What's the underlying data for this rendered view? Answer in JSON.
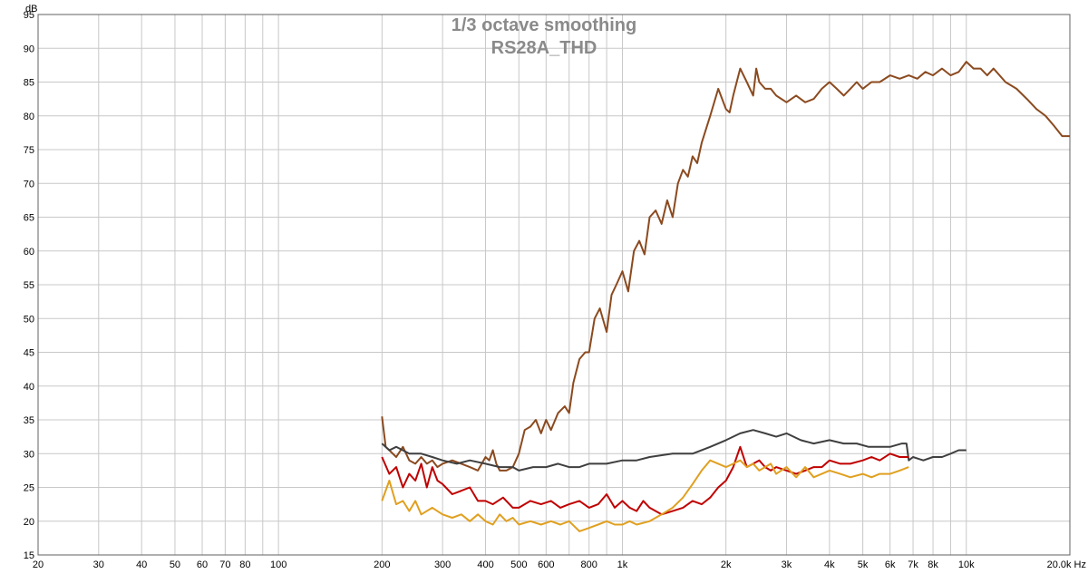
{
  "chart_data": {
    "type": "line",
    "title": "1/3 octave smoothing",
    "subtitle": "RS28A_THD",
    "ylabel": "dB",
    "xunit": "Hz",
    "xscale": "log",
    "xlim": [
      20,
      20000
    ],
    "ylim": [
      15,
      95
    ],
    "grid": true,
    "ytick_labels": [
      "15",
      "20",
      "25",
      "30",
      "35",
      "40",
      "45",
      "50",
      "55",
      "60",
      "65",
      "70",
      "75",
      "80",
      "85",
      "90",
      "95"
    ],
    "yticks": [
      15,
      20,
      25,
      30,
      35,
      40,
      45,
      50,
      55,
      60,
      65,
      70,
      75,
      80,
      85,
      90,
      95
    ],
    "xticks": [
      {
        "v": 20,
        "label": "20"
      },
      {
        "v": 30,
        "label": "30"
      },
      {
        "v": 40,
        "label": "40"
      },
      {
        "v": 50,
        "label": "50"
      },
      {
        "v": 60,
        "label": "60"
      },
      {
        "v": 70,
        "label": "70"
      },
      {
        "v": 80,
        "label": "80"
      },
      {
        "v": 100,
        "label": "100"
      },
      {
        "v": 200,
        "label": "200"
      },
      {
        "v": 300,
        "label": "300"
      },
      {
        "v": 400,
        "label": "400"
      },
      {
        "v": 500,
        "label": "500"
      },
      {
        "v": 600,
        "label": "600"
      },
      {
        "v": 800,
        "label": "800"
      },
      {
        "v": 1000,
        "label": "1k"
      },
      {
        "v": 2000,
        "label": "2k"
      },
      {
        "v": 3000,
        "label": "3k"
      },
      {
        "v": 4000,
        "label": "4k"
      },
      {
        "v": 5000,
        "label": "5k"
      },
      {
        "v": 6000,
        "label": "6k"
      },
      {
        "v": 7000,
        "label": "7k"
      },
      {
        "v": 8000,
        "label": "8k"
      },
      {
        "v": 10000,
        "label": "10k"
      },
      {
        "v": 20000,
        "label": "20.0k Hz"
      }
    ],
    "series": [
      {
        "color": "#8b4a1f",
        "x": [
          200,
          205,
          210,
          220,
          230,
          240,
          250,
          260,
          270,
          280,
          290,
          300,
          320,
          340,
          360,
          380,
          400,
          410,
          420,
          430,
          440,
          460,
          480,
          500,
          520,
          540,
          560,
          580,
          600,
          620,
          650,
          680,
          700,
          720,
          750,
          780,
          800,
          830,
          860,
          900,
          930,
          960,
          1000,
          1040,
          1080,
          1120,
          1160,
          1200,
          1250,
          1300,
          1350,
          1400,
          1450,
          1500,
          1550,
          1600,
          1650,
          1700,
          1800,
          1900,
          2000,
          2050,
          2100,
          2200,
          2300,
          2400,
          2450,
          2500,
          2600,
          2700,
          2800,
          3000,
          3200,
          3400,
          3600,
          3800,
          4000,
          4200,
          4400,
          4600,
          4800,
          5000,
          5300,
          5600,
          6000,
          6400,
          6800,
          7200,
          7600,
          8000,
          8500,
          9000,
          9500,
          10000,
          10500,
          11000,
          11500,
          12000,
          13000,
          14000,
          15000,
          16000,
          17000,
          18000,
          19000,
          20000
        ],
        "y": [
          35.5,
          31,
          30.5,
          29.5,
          31,
          29,
          28.5,
          29.5,
          28.5,
          29,
          28,
          28.5,
          29,
          28.5,
          28,
          27.5,
          29.5,
          29,
          30.5,
          28.5,
          27.5,
          27.5,
          28,
          30,
          33.5,
          34,
          35,
          33,
          35,
          33.5,
          36,
          37,
          36,
          40.5,
          44,
          45,
          45,
          50,
          51.5,
          48,
          53.5,
          55,
          57,
          54,
          60,
          61.5,
          59.5,
          65,
          66,
          64,
          67.5,
          65,
          70,
          72,
          71,
          74,
          73,
          76,
          80,
          84,
          81,
          80.5,
          83,
          87,
          85,
          83,
          87,
          85,
          84,
          84,
          83,
          82,
          83,
          82,
          82.5,
          84,
          85,
          84,
          83,
          84,
          85,
          84,
          85,
          85,
          86,
          85.5,
          86,
          85.5,
          86.5,
          86,
          87,
          86,
          86.5,
          88,
          87,
          87,
          86,
          87,
          85,
          84,
          82.5,
          81,
          80,
          78.5,
          77,
          77
        ]
      },
      {
        "color": "#3f3f3f",
        "x": [
          200,
          210,
          220,
          240,
          260,
          280,
          300,
          330,
          360,
          400,
          440,
          480,
          500,
          550,
          600,
          650,
          700,
          750,
          800,
          900,
          1000,
          1100,
          1200,
          1400,
          1600,
          1800,
          2000,
          2200,
          2400,
          2600,
          2800,
          3000,
          3300,
          3600,
          4000,
          4400,
          4800,
          5200,
          5600,
          6000,
          6500,
          6700,
          6800,
          7000,
          7500,
          8000,
          8500,
          9000,
          9500,
          10000
        ],
        "y": [
          31.5,
          30.5,
          31,
          30,
          30,
          29.5,
          29,
          28.5,
          29,
          28.5,
          28,
          28,
          27.5,
          28,
          28,
          28.5,
          28,
          28,
          28.5,
          28.5,
          29,
          29,
          29.5,
          30,
          30,
          31,
          32,
          33,
          33.5,
          33,
          32.5,
          33,
          32,
          31.5,
          32,
          31.5,
          31.5,
          31,
          31,
          31,
          31.5,
          31.5,
          29,
          29.5,
          29,
          29.5,
          29.5,
          30,
          30.5,
          30.5
        ]
      },
      {
        "color": "#c00000",
        "x": [
          200,
          210,
          220,
          230,
          240,
          250,
          260,
          270,
          280,
          290,
          300,
          320,
          340,
          360,
          380,
          400,
          420,
          450,
          480,
          500,
          540,
          580,
          620,
          660,
          700,
          750,
          800,
          850,
          900,
          950,
          1000,
          1050,
          1100,
          1150,
          1200,
          1300,
          1400,
          1500,
          1600,
          1700,
          1800,
          1900,
          2000,
          2100,
          2200,
          2300,
          2400,
          2500,
          2600,
          2700,
          2800,
          3000,
          3200,
          3400,
          3600,
          3800,
          4000,
          4300,
          4600,
          5000,
          5300,
          5600,
          6000,
          6400,
          6800
        ],
        "y": [
          29.5,
          27,
          28,
          25,
          27,
          26,
          28.5,
          25,
          28,
          26,
          25.5,
          24,
          24.5,
          25,
          23,
          23,
          22.5,
          23.5,
          22,
          22,
          23,
          22.5,
          23,
          22,
          22.5,
          23,
          22,
          22.5,
          24,
          22,
          23,
          22,
          21.5,
          23,
          22,
          21,
          21.5,
          22,
          23,
          22.5,
          23.5,
          25,
          26,
          28,
          31,
          28,
          28.5,
          29,
          28,
          27.5,
          28,
          27.5,
          27,
          27.5,
          28,
          28,
          29,
          28.5,
          28.5,
          29,
          29.5,
          29,
          30,
          29.5,
          29.5
        ]
      },
      {
        "color": "#e0a020",
        "x": [
          200,
          210,
          220,
          230,
          240,
          250,
          260,
          280,
          300,
          320,
          340,
          360,
          380,
          400,
          420,
          440,
          460,
          480,
          500,
          540,
          580,
          620,
          660,
          700,
          750,
          800,
          850,
          900,
          950,
          1000,
          1050,
          1100,
          1200,
          1300,
          1400,
          1500,
          1600,
          1700,
          1800,
          1900,
          2000,
          2100,
          2200,
          2300,
          2400,
          2500,
          2600,
          2700,
          2800,
          3000,
          3200,
          3400,
          3600,
          3800,
          4000,
          4300,
          4600,
          5000,
          5300,
          5600,
          6000,
          6400,
          6800
        ],
        "y": [
          23,
          26,
          22.5,
          23,
          21.5,
          23,
          21,
          22,
          21,
          20.5,
          21,
          20,
          21,
          20,
          19.5,
          21,
          20,
          20.5,
          19.5,
          20,
          19.5,
          20,
          19.5,
          20,
          18.5,
          19,
          19.5,
          20,
          19.5,
          19.5,
          20,
          19.5,
          20,
          21,
          22,
          23.5,
          25.5,
          27.5,
          29,
          28.5,
          28,
          28.5,
          29,
          28,
          28.5,
          27.5,
          28,
          28.5,
          27,
          28,
          26.5,
          28,
          26.5,
          27,
          27.5,
          27,
          26.5,
          27,
          26.5,
          27,
          27,
          27.5,
          28
        ]
      }
    ]
  }
}
